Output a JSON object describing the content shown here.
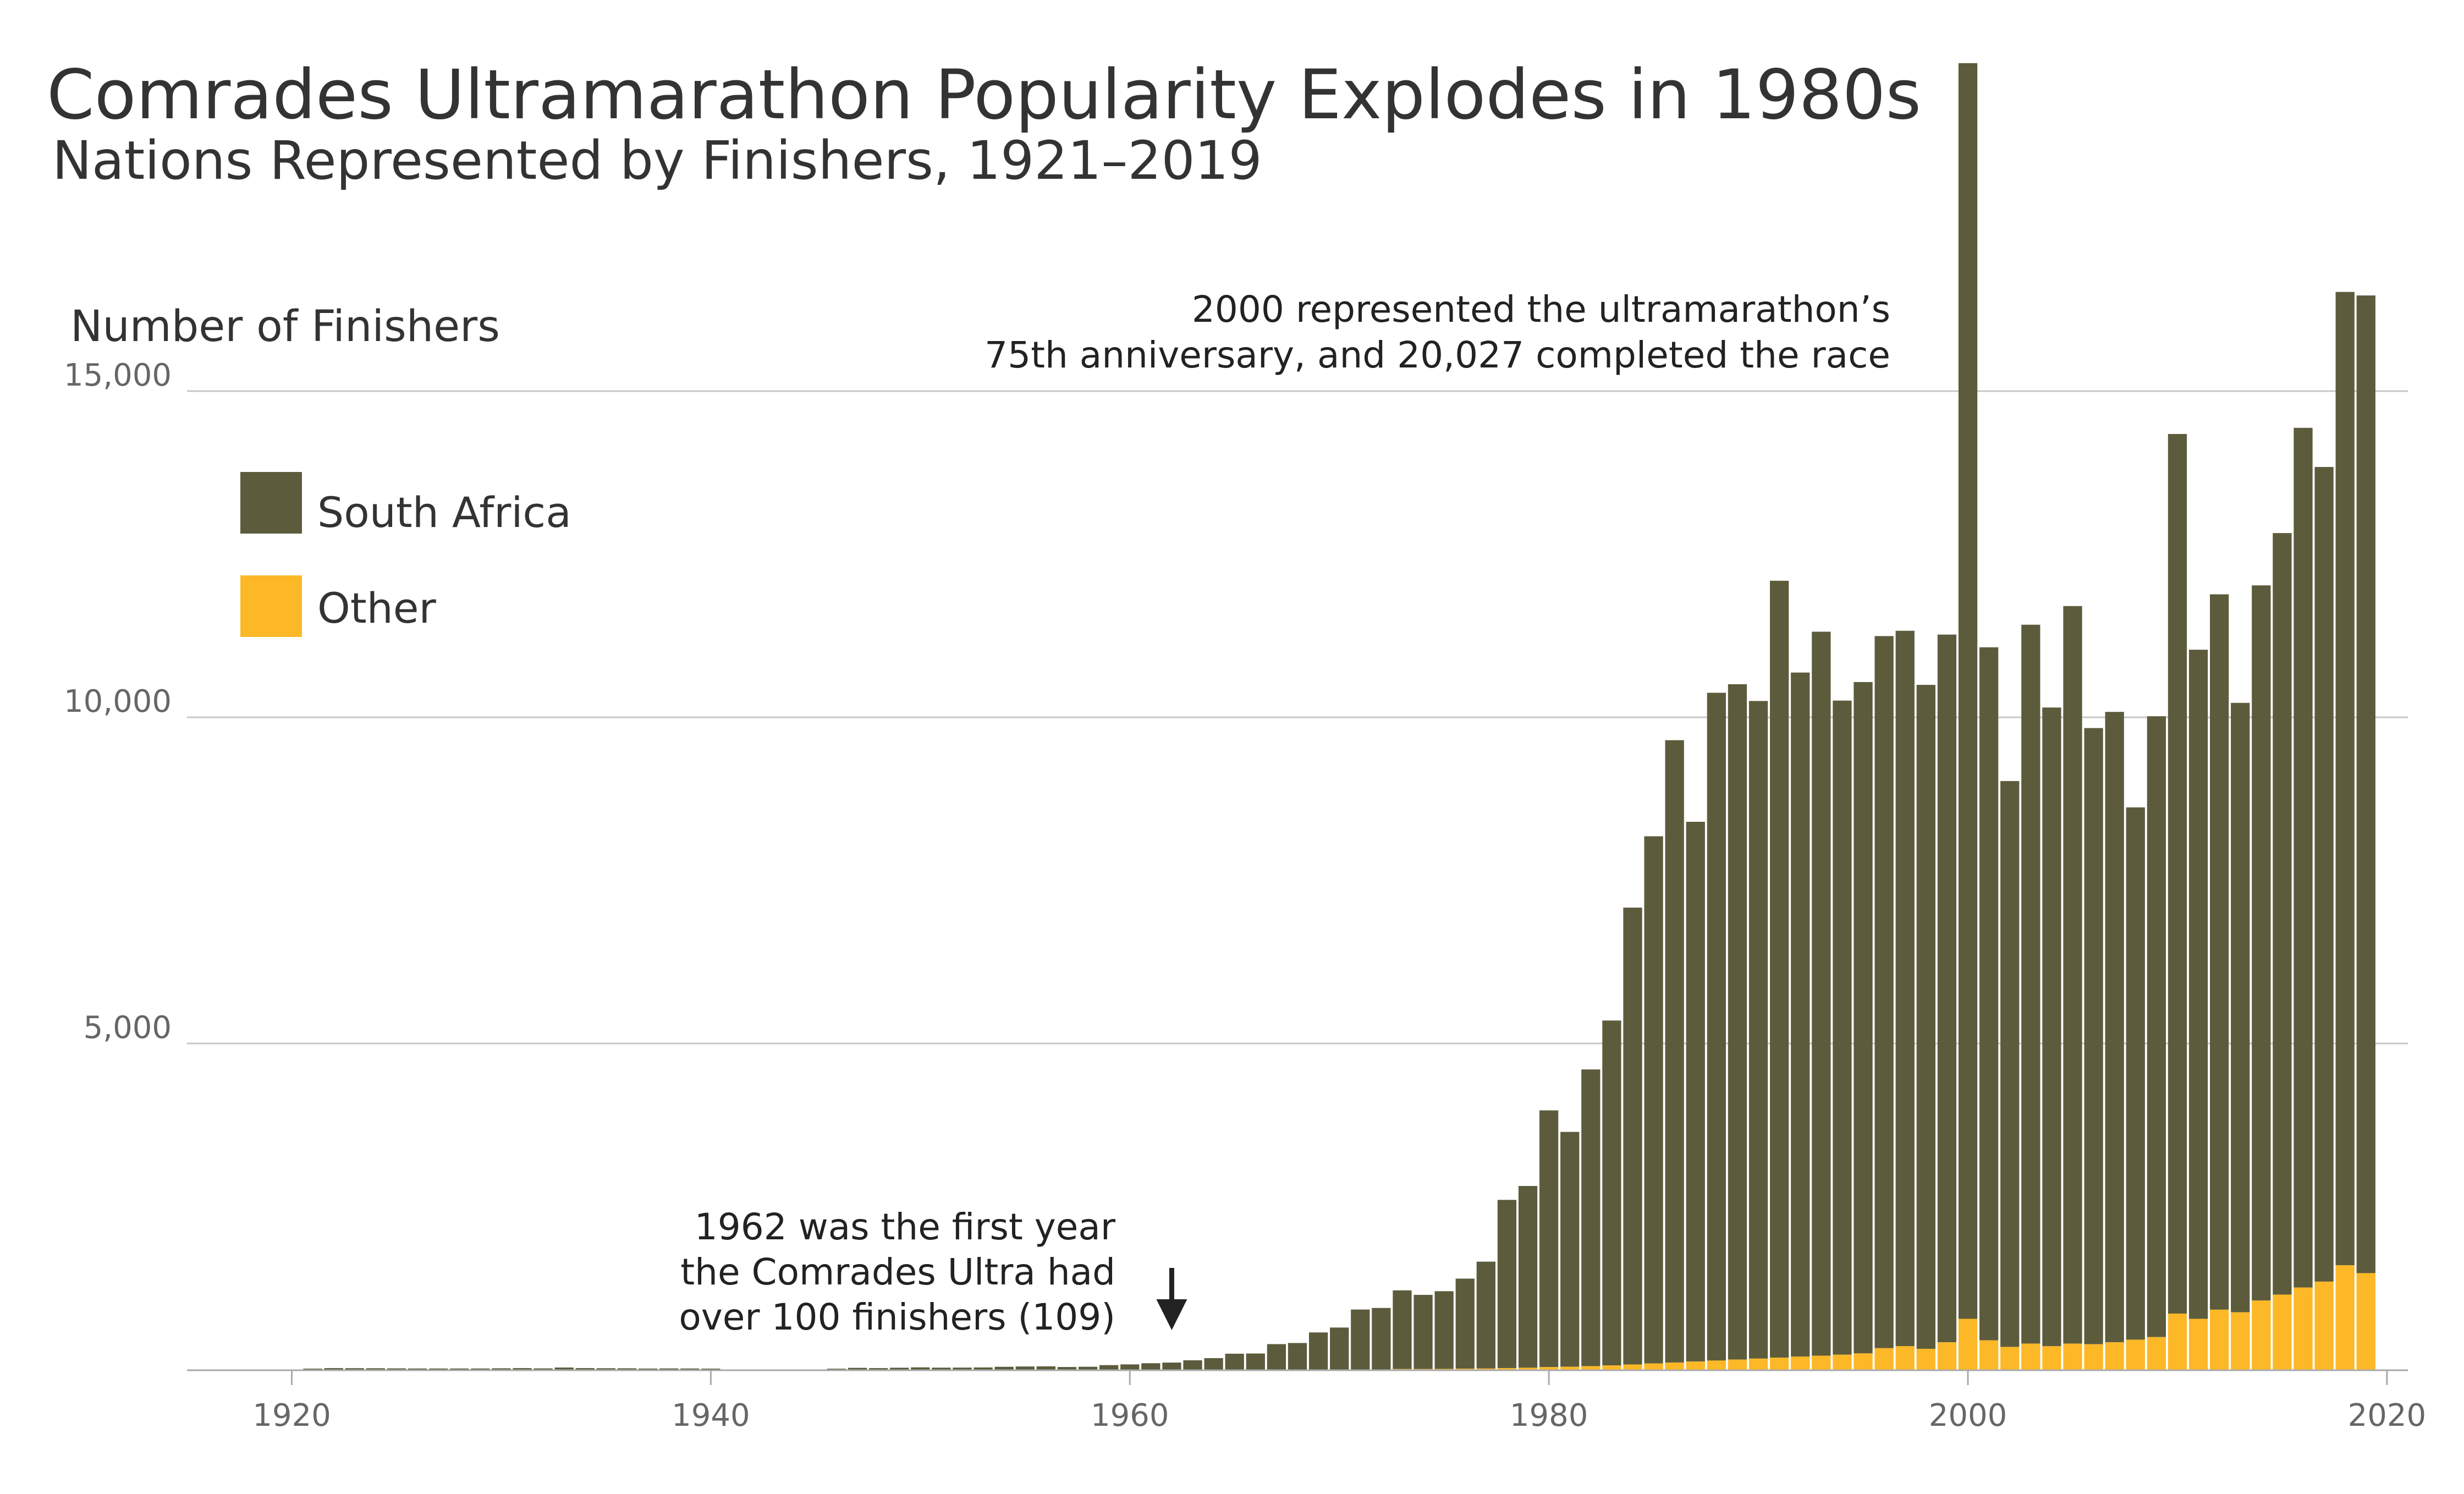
{
  "chart_data": {
    "type": "bar",
    "stacked": true,
    "title": "Comrades Ultramarathon Popularity Explodes in 1980s",
    "subtitle": "Nations Represented by Finishers, 1921–2019",
    "ylabel": "Number of Finishers",
    "xlabel": "",
    "ylim": [
      0,
      20000
    ],
    "xlim": [
      1915,
      2021
    ],
    "y_ticks": [
      {
        "value": 5000,
        "label": "5,000"
      },
      {
        "value": 10000,
        "label": "10,000"
      },
      {
        "value": 15000,
        "label": "15,000"
      }
    ],
    "x_ticks": [
      {
        "value": 1920,
        "label": "1920"
      },
      {
        "value": 1940,
        "label": "1940"
      },
      {
        "value": 1960,
        "label": "1960"
      },
      {
        "value": 1980,
        "label": "1980"
      },
      {
        "value": 2000,
        "label": "2000"
      },
      {
        "value": 2020,
        "label": "2020"
      }
    ],
    "grid": "horizontal",
    "legend_position": "top-left",
    "series": [
      {
        "name": "South Africa",
        "color": "#5c5c3d"
      },
      {
        "name": "Other",
        "color": "#fdb827"
      }
    ],
    "years": [
      1921,
      1922,
      1923,
      1924,
      1925,
      1926,
      1927,
      1928,
      1929,
      1930,
      1931,
      1932,
      1933,
      1934,
      1935,
      1936,
      1937,
      1938,
      1939,
      1940,
      1946,
      1947,
      1948,
      1949,
      1950,
      1951,
      1952,
      1953,
      1954,
      1955,
      1956,
      1957,
      1958,
      1959,
      1960,
      1961,
      1962,
      1963,
      1964,
      1965,
      1966,
      1967,
      1968,
      1969,
      1970,
      1971,
      1972,
      1973,
      1974,
      1975,
      1976,
      1977,
      1978,
      1979,
      1980,
      1981,
      1982,
      1983,
      1984,
      1985,
      1986,
      1987,
      1988,
      1989,
      1990,
      1991,
      1992,
      1993,
      1994,
      1995,
      1996,
      1997,
      1998,
      1999,
      2000,
      2001,
      2002,
      2003,
      2004,
      2005,
      2006,
      2007,
      2008,
      2009,
      2010,
      2011,
      2012,
      2013,
      2014,
      2015,
      2016,
      2017,
      2018,
      2019
    ],
    "totals": [
      16,
      24,
      23,
      22,
      20,
      18,
      18,
      18,
      18,
      21,
      24,
      20,
      33,
      24,
      22,
      21,
      17,
      19,
      18,
      16,
      15,
      28,
      24,
      30,
      35,
      31,
      32,
      34,
      44,
      49,
      51,
      41,
      45,
      70,
      81,
      99,
      109,
      144,
      177,
      245,
      248,
      392,
      409,
      571,
      646,
      922,
      946,
      1216,
      1147,
      1203,
      1396,
      1656,
      2603,
      2816,
      3975,
      3645,
      4602,
      5352,
      7083,
      8176,
      9649,
      8398,
      10376,
      10507,
      10250,
      12093,
      10686,
      11312,
      10256,
      10540,
      11245,
      11326,
      10497,
      11268,
      20027,
      11073,
      9023,
      11419,
      10150,
      11705,
      9835,
      10083,
      8619,
      10016,
      14343,
      11036,
      11885,
      10221,
      12022,
      12824,
      14437,
      13837,
      16520,
      16466
    ],
    "other": [
      0,
      0,
      0,
      0,
      0,
      0,
      0,
      0,
      0,
      0,
      0,
      0,
      0,
      0,
      0,
      0,
      0,
      0,
      0,
      0,
      0,
      0,
      0,
      0,
      0,
      0,
      0,
      0,
      0,
      0,
      0,
      0,
      0,
      0,
      0,
      0,
      0,
      0,
      0,
      0,
      0,
      0,
      0,
      0,
      0,
      0,
      0,
      10,
      10,
      12,
      15,
      18,
      25,
      30,
      40,
      45,
      55,
      65,
      80,
      95,
      110,
      125,
      140,
      155,
      170,
      185,
      200,
      215,
      230,
      250,
      330,
      360,
      320,
      420,
      780,
      450,
      350,
      400,
      360,
      400,
      390,
      420,
      460,
      500,
      860,
      780,
      920,
      880,
      1060,
      1150,
      1260,
      1350,
      1600,
      1480
    ]
  },
  "annotations": {
    "peak_line1": "2000 represented the ultramarathon’s",
    "peak_line2": "75th anniversary, and 20,027 completed the race",
    "first_line1": "1962 was the first year",
    "first_line2": "the Comrades Ultra had",
    "first_line3": "over 100 finishers (109)",
    "arrow_year": 1962
  },
  "colors": {
    "south_africa": "#5c5c3d",
    "other": "#fdb827",
    "grid": "#c8c8c8",
    "axis": "#aaaaaa",
    "tick_text": "#666666",
    "title": "#333333"
  }
}
